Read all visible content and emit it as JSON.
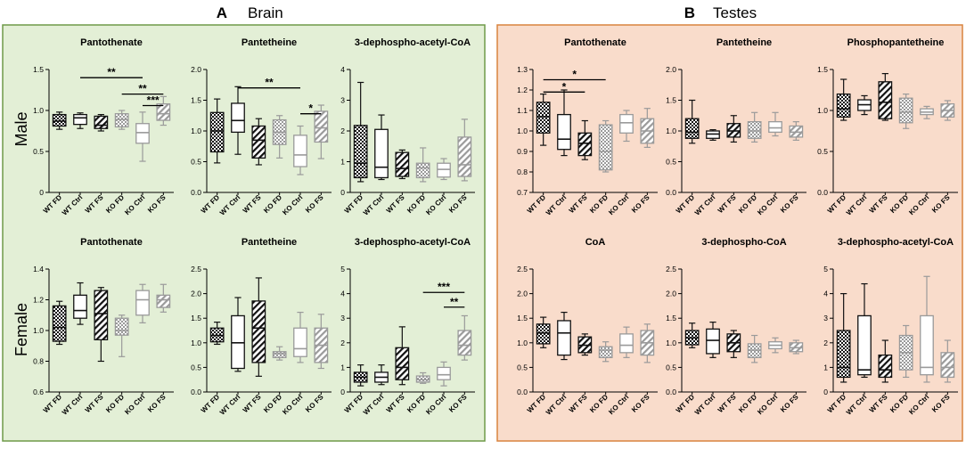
{
  "panels": {
    "brain": {
      "letter": "A",
      "title": "Brain",
      "bg": "#e3efd6",
      "border": "#6e9a48"
    },
    "testes": {
      "letter": "B",
      "title": "Testes",
      "bg": "#f9dccb",
      "border": "#d9843e"
    }
  },
  "row_labels": {
    "male": "Male",
    "female": "Female"
  },
  "groups": [
    "WT FD",
    "WT Ctrl",
    "WT FS",
    "KO FD",
    "KO Ctrl",
    "KO FS"
  ],
  "colors": {
    "wt": "#111111",
    "ko": "#9a9a9a"
  },
  "chart_data": [
    {
      "type": "box",
      "panel": "brain",
      "row": "male",
      "col": 0,
      "title": "Pantothenate",
      "ylim": [
        0,
        1.5
      ],
      "yticks": [
        "0",
        "0.5",
        "1.0",
        "1.5"
      ],
      "boxes": [
        [
          0.77,
          0.81,
          0.87,
          0.95,
          0.98
        ],
        [
          0.78,
          0.83,
          0.91,
          0.95,
          0.97
        ],
        [
          0.75,
          0.78,
          0.82,
          0.93,
          0.95
        ],
        [
          0.77,
          0.8,
          0.89,
          0.96,
          1.0
        ],
        [
          0.38,
          0.6,
          0.73,
          0.84,
          0.98
        ],
        [
          0.82,
          0.88,
          0.96,
          1.08,
          1.17
        ]
      ],
      "brackets": [
        {
          "from": 1,
          "to": 4,
          "label": "**",
          "y": 1.4
        },
        {
          "from": 3,
          "to": 5,
          "label": "**",
          "y": 1.2
        },
        {
          "from": 4,
          "to": 5,
          "label": "***",
          "y": 1.06
        }
      ]
    },
    {
      "type": "box",
      "panel": "brain",
      "row": "male",
      "col": 1,
      "title": "Pantetheine",
      "ylim": [
        0,
        2.0
      ],
      "yticks": [
        "0.0",
        "0.5",
        "1.0",
        "1.5",
        "2.0"
      ],
      "boxes": [
        [
          0.48,
          0.66,
          1.0,
          1.3,
          1.52
        ],
        [
          0.62,
          0.98,
          1.17,
          1.45,
          1.72
        ],
        [
          0.45,
          0.56,
          0.85,
          1.08,
          1.2
        ],
        [
          0.56,
          0.78,
          0.98,
          1.18,
          1.25
        ],
        [
          0.29,
          0.42,
          0.61,
          0.93,
          1.08
        ],
        [
          0.55,
          0.82,
          1.05,
          1.32,
          1.42
        ]
      ],
      "brackets": [
        {
          "from": 1,
          "to": 4,
          "label": "**",
          "y": 1.7
        },
        {
          "from": 4,
          "to": 5,
          "label": "*",
          "y": 1.28
        }
      ]
    },
    {
      "type": "box",
      "panel": "brain",
      "row": "male",
      "col": 2,
      "title": "3-dephospho-acetyl-CoA",
      "ylim": [
        0,
        4
      ],
      "yticks": [
        "0",
        "1",
        "2",
        "3",
        "4"
      ],
      "boxes": [
        [
          0.35,
          0.48,
          0.95,
          2.18,
          3.58
        ],
        [
          0.42,
          0.48,
          0.82,
          2.05,
          2.52
        ],
        [
          0.45,
          0.52,
          0.78,
          1.3,
          1.38
        ],
        [
          0.35,
          0.48,
          0.8,
          0.95,
          1.45
        ],
        [
          0.42,
          0.5,
          0.75,
          0.95,
          1.1
        ],
        [
          0.38,
          0.52,
          0.9,
          1.8,
          2.38
        ]
      ],
      "brackets": []
    },
    {
      "type": "box",
      "panel": "brain",
      "row": "female",
      "col": 0,
      "title": "Pantothenate",
      "ylim": [
        0.6,
        1.4
      ],
      "yticks": [
        "0.6",
        "0.8",
        "1.0",
        "1.2",
        "1.4"
      ],
      "boxes": [
        [
          0.91,
          0.93,
          1.02,
          1.16,
          1.19
        ],
        [
          1.04,
          1.08,
          1.13,
          1.23,
          1.31
        ],
        [
          0.8,
          0.94,
          1.11,
          1.26,
          1.28
        ],
        [
          0.83,
          0.97,
          1.0,
          1.08,
          1.1
        ],
        [
          1.05,
          1.1,
          1.2,
          1.26,
          1.3
        ],
        [
          1.12,
          1.15,
          1.2,
          1.23,
          1.3
        ]
      ],
      "brackets": []
    },
    {
      "type": "box",
      "panel": "brain",
      "row": "female",
      "col": 1,
      "title": "Pantetheine",
      "ylim": [
        0,
        2.5
      ],
      "yticks": [
        "0.0",
        "0.5",
        "1.0",
        "1.5",
        "2.0",
        "2.5"
      ],
      "boxes": [
        [
          0.97,
          1.02,
          1.15,
          1.3,
          1.42
        ],
        [
          0.42,
          0.48,
          1.0,
          1.55,
          1.92
        ],
        [
          0.32,
          0.6,
          1.3,
          1.85,
          2.32
        ],
        [
          0.65,
          0.7,
          0.78,
          0.82,
          0.92
        ],
        [
          0.6,
          0.72,
          0.88,
          1.3,
          1.62
        ],
        [
          0.48,
          0.6,
          0.95,
          1.3,
          1.58
        ]
      ],
      "brackets": []
    },
    {
      "type": "box",
      "panel": "brain",
      "row": "female",
      "col": 2,
      "title": "3-dephospho-acetyl-CoA",
      "ylim": [
        0,
        5
      ],
      "yticks": [
        "0",
        "1",
        "2",
        "3",
        "4",
        "5"
      ],
      "boxes": [
        [
          0.25,
          0.4,
          0.6,
          0.8,
          1.1
        ],
        [
          0.3,
          0.4,
          0.6,
          0.8,
          1.1
        ],
        [
          0.3,
          0.5,
          1.0,
          1.8,
          2.65
        ],
        [
          0.35,
          0.4,
          0.5,
          0.65,
          0.78
        ],
        [
          0.25,
          0.5,
          0.7,
          1.0,
          1.22
        ],
        [
          1.3,
          1.5,
          1.9,
          2.5,
          3.1
        ]
      ],
      "brackets": [
        {
          "from": 3,
          "to": 5,
          "label": "***",
          "y": 4.05
        },
        {
          "from": 4,
          "to": 5,
          "label": "**",
          "y": 3.45
        }
      ]
    },
    {
      "type": "box",
      "panel": "testes",
      "row": "male",
      "col": 0,
      "title": "Pantothenate",
      "ylim": [
        0.7,
        1.3
      ],
      "yticks": [
        "0.7",
        "0.8",
        "0.9",
        "1.0",
        "1.1",
        "1.2",
        "1.3"
      ],
      "boxes": [
        [
          0.93,
          0.99,
          1.07,
          1.14,
          1.18
        ],
        [
          0.88,
          0.91,
          0.96,
          1.08,
          1.2
        ],
        [
          0.86,
          0.88,
          0.94,
          0.99,
          1.05
        ],
        [
          0.8,
          0.81,
          0.9,
          1.03,
          1.05
        ],
        [
          0.95,
          0.99,
          1.04,
          1.08,
          1.1
        ],
        [
          0.92,
          0.94,
          1.0,
          1.06,
          1.11
        ]
      ],
      "brackets": [
        {
          "from": 0,
          "to": 3,
          "label": "*",
          "y": 1.25
        },
        {
          "from": 0,
          "to": 2,
          "label": "*",
          "y": 1.19
        }
      ]
    },
    {
      "type": "box",
      "panel": "testes",
      "row": "male",
      "col": 1,
      "title": "Pantetheine",
      "ylim": [
        0,
        2.0
      ],
      "yticks": [
        "0.0",
        "0.5",
        "1.0",
        "1.5",
        "2.0"
      ],
      "boxes": [
        [
          0.8,
          0.88,
          0.98,
          1.2,
          1.5
        ],
        [
          0.85,
          0.88,
          0.95,
          1.0,
          1.02
        ],
        [
          0.82,
          0.9,
          1.0,
          1.12,
          1.25
        ],
        [
          0.82,
          0.88,
          1.0,
          1.15,
          1.3
        ],
        [
          0.92,
          0.98,
          1.05,
          1.15,
          1.3
        ],
        [
          0.85,
          0.9,
          0.98,
          1.08,
          1.15
        ]
      ],
      "brackets": []
    },
    {
      "type": "box",
      "panel": "testes",
      "row": "male",
      "col": 2,
      "title": "Phosphopantetheine",
      "ylim": [
        0,
        1.5
      ],
      "yticks": [
        "0.0",
        "0.5",
        "1.0",
        "1.5"
      ],
      "boxes": [
        [
          0.88,
          0.92,
          1.02,
          1.2,
          1.38
        ],
        [
          0.95,
          1.0,
          1.07,
          1.13,
          1.18
        ],
        [
          0.88,
          0.9,
          1.1,
          1.35,
          1.45
        ],
        [
          0.78,
          0.85,
          0.98,
          1.15,
          1.2
        ],
        [
          0.9,
          0.95,
          0.98,
          1.02,
          1.05
        ],
        [
          0.88,
          0.92,
          1.0,
          1.08,
          1.12
        ]
      ],
      "brackets": []
    },
    {
      "type": "box",
      "panel": "testes",
      "row": "female",
      "col": 0,
      "title": "CoA",
      "ylim": [
        0,
        2.5
      ],
      "yticks": [
        "0.0",
        "0.5",
        "1.0",
        "1.5",
        "2.0",
        "2.5"
      ],
      "boxes": [
        [
          0.9,
          0.98,
          1.2,
          1.38,
          1.52
        ],
        [
          0.66,
          0.75,
          1.2,
          1.45,
          1.62
        ],
        [
          0.75,
          0.8,
          0.95,
          1.12,
          1.18
        ],
        [
          0.62,
          0.7,
          0.85,
          0.92,
          1.02
        ],
        [
          0.7,
          0.8,
          0.95,
          1.18,
          1.32
        ],
        [
          0.6,
          0.75,
          1.0,
          1.25,
          1.38
        ]
      ],
      "brackets": []
    },
    {
      "type": "box",
      "panel": "testes",
      "row": "female",
      "col": 1,
      "title": "3-dephospho-CoA",
      "ylim": [
        0,
        2.5
      ],
      "yticks": [
        "0.0",
        "0.5",
        "1.0",
        "1.5",
        "2.0",
        "2.5"
      ],
      "boxes": [
        [
          0.9,
          0.96,
          1.1,
          1.25,
          1.4
        ],
        [
          0.7,
          0.78,
          1.05,
          1.28,
          1.42
        ],
        [
          0.7,
          0.82,
          1.0,
          1.18,
          1.25
        ],
        [
          0.6,
          0.7,
          0.85,
          0.98,
          1.15
        ],
        [
          0.8,
          0.88,
          0.95,
          1.02,
          1.1
        ],
        [
          0.78,
          0.82,
          0.9,
          1.0,
          1.05
        ]
      ],
      "brackets": []
    },
    {
      "type": "box",
      "panel": "testes",
      "row": "female",
      "col": 2,
      "title": "3-dephospho-acetyl-CoA",
      "ylim": [
        0,
        5
      ],
      "yticks": [
        "0",
        "1",
        "2",
        "3",
        "4",
        "5"
      ],
      "boxes": [
        [
          0.4,
          0.6,
          1.0,
          2.5,
          4.0
        ],
        [
          0.6,
          0.7,
          0.9,
          3.1,
          4.4
        ],
        [
          0.4,
          0.6,
          0.9,
          1.5,
          2.1
        ],
        [
          0.6,
          0.9,
          1.6,
          2.3,
          2.7
        ],
        [
          0.4,
          0.7,
          1.0,
          3.1,
          4.7
        ],
        [
          0.4,
          0.6,
          1.0,
          1.6,
          2.1
        ]
      ],
      "brackets": []
    }
  ]
}
